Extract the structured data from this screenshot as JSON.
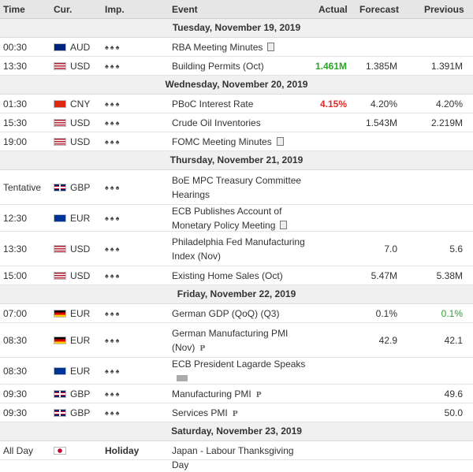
{
  "header": {
    "time": "Time",
    "cur": "Cur.",
    "imp": "Imp.",
    "event": "Event",
    "actual": "Actual",
    "forecast": "Forecast",
    "previous": "Previous"
  },
  "days": [
    {
      "label": "Tuesday, November 19, 2019",
      "rows": [
        {
          "time": "00:30",
          "flag": "australia",
          "currency": "AUD",
          "impact": "low",
          "event": [
            "RBA Meeting Minutes"
          ],
          "icon": "document-icon",
          "actual": "",
          "forecast": "",
          "previous": ""
        },
        {
          "time": "13:30",
          "flag": "usa",
          "currency": "USD",
          "impact": "low",
          "event": [
            "Building Permits (Oct)"
          ],
          "icon": "",
          "actual": "1.461M",
          "actual_color": "green",
          "forecast": "1.385M",
          "previous": "1.391M"
        }
      ]
    },
    {
      "label": "Wednesday, November 20, 2019",
      "rows": [
        {
          "time": "01:30",
          "flag": "china",
          "currency": "CNY",
          "impact": "low",
          "event": [
            "PBoC Interest Rate"
          ],
          "icon": "",
          "actual": "4.15%",
          "actual_color": "red",
          "forecast": "4.20%",
          "previous": "4.20%"
        },
        {
          "time": "15:30",
          "flag": "usa",
          "currency": "USD",
          "impact": "low",
          "event": [
            "Crude Oil Inventories"
          ],
          "icon": "",
          "actual": "",
          "forecast": "1.543M",
          "previous": "2.219M"
        },
        {
          "time": "19:00",
          "flag": "usa",
          "currency": "USD",
          "impact": "low",
          "event": [
            "FOMC Meeting Minutes"
          ],
          "icon": "document-icon",
          "actual": "",
          "forecast": "",
          "previous": ""
        }
      ]
    },
    {
      "label": "Thursday, November 21, 2019",
      "rows": [
        {
          "time": "Tentative",
          "flag": "uk",
          "currency": "GBP",
          "impact": "low",
          "event": [
            "BoE MPC Treasury Committee",
            "Hearings"
          ],
          "icon": "",
          "actual": "",
          "forecast": "",
          "previous": ""
        },
        {
          "time": "12:30",
          "flag": "eu",
          "currency": "EUR",
          "impact": "low",
          "event": [
            "ECB Publishes Account of",
            "Monetary Policy Meeting"
          ],
          "icon": "document-icon",
          "actual": "",
          "forecast": "",
          "previous": ""
        },
        {
          "time": "13:30",
          "flag": "usa",
          "currency": "USD",
          "impact": "low",
          "event": [
            "Philadelphia Fed Manufacturing",
            "Index (Nov)"
          ],
          "icon": "",
          "actual": "",
          "forecast": "7.0",
          "previous": "5.6"
        },
        {
          "time": "15:00",
          "flag": "usa",
          "currency": "USD",
          "impact": "low",
          "event": [
            "Existing Home Sales (Oct)"
          ],
          "icon": "",
          "actual": "",
          "forecast": "5.47M",
          "previous": "5.38M"
        }
      ]
    },
    {
      "label": "Friday, November 22, 2019",
      "rows": [
        {
          "time": "07:00",
          "flag": "germany",
          "currency": "EUR",
          "impact": "low",
          "event": [
            "German GDP (QoQ) (Q3)"
          ],
          "icon": "",
          "actual": "",
          "forecast": "0.1%",
          "previous": "0.1%",
          "previous_color": "green"
        },
        {
          "time": "08:30",
          "flag": "germany",
          "currency": "EUR",
          "impact": "low",
          "event": [
            "German Manufacturing PMI",
            "(Nov)"
          ],
          "icon": "preliminary-icon",
          "actual": "",
          "forecast": "42.9",
          "previous": "42.1"
        },
        {
          "time": "08:30",
          "flag": "eu",
          "currency": "EUR",
          "impact": "low",
          "event": [
            "ECB President Lagarde Speaks",
            ""
          ],
          "icon": "speaker-icon",
          "actual": "",
          "forecast": "",
          "previous": ""
        },
        {
          "time": "09:30",
          "flag": "uk",
          "currency": "GBP",
          "impact": "low",
          "event": [
            "Manufacturing PMI"
          ],
          "icon": "preliminary-icon",
          "actual": "",
          "forecast": "",
          "previous": "49.6"
        },
        {
          "time": "09:30",
          "flag": "uk",
          "currency": "GBP",
          "impact": "low",
          "event": [
            "Services PMI"
          ],
          "icon": "preliminary-icon",
          "actual": "",
          "forecast": "",
          "previous": "50.0"
        }
      ]
    },
    {
      "label": "Saturday, November 23, 2019",
      "rows": [
        {
          "time": "All Day",
          "flag": "japan",
          "currency": "",
          "impact": "holiday",
          "holiday": "Holiday",
          "event": [
            "Japan - Labour Thanksgiving Day"
          ],
          "icon": "",
          "actual": "",
          "forecast": "",
          "previous": ""
        }
      ]
    }
  ],
  "colors": {
    "green": "#2aa52a",
    "red": "#e02a2a"
  }
}
